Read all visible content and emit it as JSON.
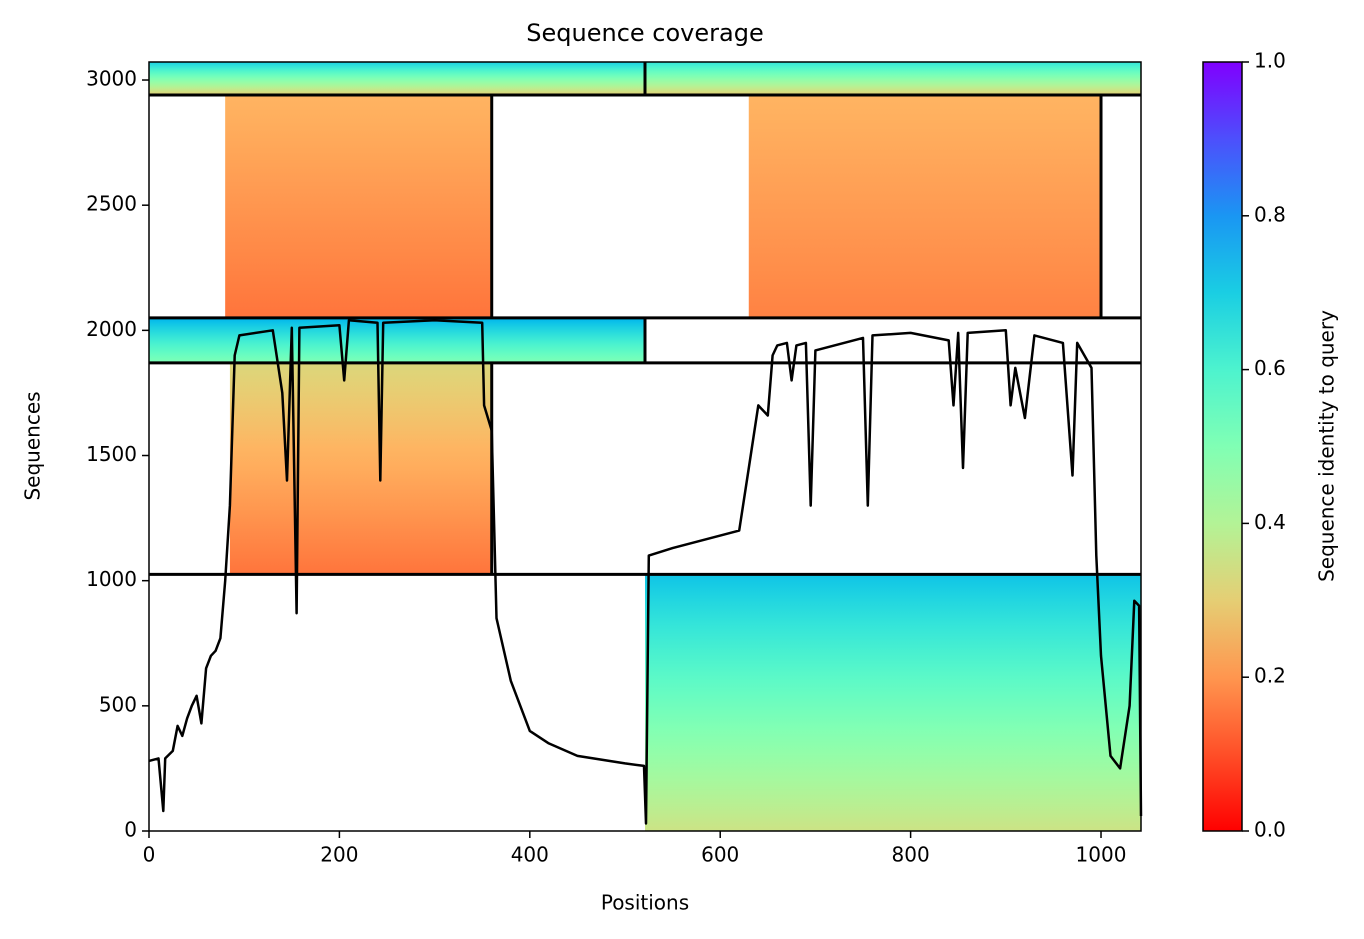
{
  "chart_data": {
    "type": "coverage",
    "title": "Sequence coverage",
    "xlabel": "Positions",
    "ylabel": "Sequences",
    "xlim": [
      0,
      1042
    ],
    "ylim": [
      0,
      3072
    ],
    "xticks": [
      0,
      200,
      400,
      600,
      800,
      1000
    ],
    "yticks": [
      0,
      500,
      1000,
      1500,
      2000,
      2500,
      3000
    ],
    "colormap": "rainbow_r",
    "blocks": [
      {
        "x": [
          0,
          521
        ],
        "y": [
          2940,
          3072
        ],
        "identity": [
          0.3,
          0.7
        ]
      },
      {
        "x": [
          80,
          360
        ],
        "y": [
          2050,
          2940
        ],
        "identity": [
          0.15,
          0.25
        ]
      },
      {
        "x": [
          521,
          1042
        ],
        "y": [
          2940,
          3072
        ],
        "identity": [
          0.3,
          0.65
        ]
      },
      {
        "x": [
          630,
          1000
        ],
        "y": [
          2050,
          2940
        ],
        "identity": [
          0.17,
          0.25
        ]
      },
      {
        "x": [
          0,
          521
        ],
        "y": [
          1870,
          2050
        ],
        "identity": [
          0.5,
          0.75
        ]
      },
      {
        "x": [
          85,
          360
        ],
        "y": [
          1025,
          1870
        ],
        "identity": [
          0.15,
          0.32
        ]
      },
      {
        "x": [
          521,
          1042
        ],
        "y": [
          0,
          1025
        ],
        "identity": [
          0.35,
          0.72
        ]
      }
    ],
    "line_color": "#000000",
    "x": [
      0,
      10,
      15,
      17,
      25,
      30,
      35,
      40,
      45,
      50,
      55,
      60,
      65,
      70,
      75,
      80,
      85,
      90,
      95,
      130,
      140,
      145,
      150,
      155,
      158,
      200,
      205,
      210,
      240,
      243,
      246,
      300,
      350,
      352,
      360,
      365,
      380,
      400,
      420,
      450,
      500,
      520,
      522,
      525,
      550,
      600,
      620,
      630,
      640,
      650,
      655,
      660,
      670,
      675,
      680,
      690,
      695,
      700,
      750,
      755,
      760,
      800,
      840,
      845,
      850,
      855,
      860,
      900,
      905,
      910,
      920,
      930,
      960,
      970,
      975,
      990,
      995,
      1000,
      1010,
      1020,
      1030,
      1035,
      1040,
      1042
    ],
    "values": [
      280,
      290,
      80,
      290,
      320,
      420,
      380,
      450,
      500,
      540,
      430,
      650,
      700,
      720,
      770,
      1000,
      1300,
      1900,
      1980,
      2000,
      1750,
      1400,
      2010,
      870,
      2010,
      2020,
      1800,
      2040,
      2030,
      1400,
      2030,
      2040,
      2030,
      1700,
      1600,
      850,
      600,
      400,
      350,
      300,
      270,
      260,
      30,
      1100,
      1130,
      1180,
      1200,
      1450,
      1700,
      1660,
      1900,
      1940,
      1950,
      1800,
      1940,
      1950,
      1300,
      1920,
      1970,
      1300,
      1980,
      1990,
      1960,
      1700,
      1990,
      1450,
      1990,
      2000,
      1700,
      1850,
      1650,
      1980,
      1950,
      1420,
      1950,
      1850,
      1100,
      700,
      300,
      250,
      500,
      920,
      900,
      60
    ],
    "colorbar": {
      "label": "Sequence identity to query",
      "lim": [
        0,
        1
      ],
      "ticks": [
        {
          "value": 0,
          "label": "0.0"
        },
        {
          "value": 0.2,
          "label": "0.2"
        },
        {
          "value": 0.4,
          "label": "0.4"
        },
        {
          "value": 0.6,
          "label": "0.6"
        },
        {
          "value": 0.8,
          "label": "0.8"
        },
        {
          "value": 1,
          "label": "1.0"
        }
      ]
    }
  }
}
